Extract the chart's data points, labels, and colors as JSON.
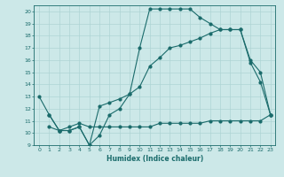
{
  "xlabel": "Humidex (Indice chaleur)",
  "xlim": [
    -0.5,
    23.5
  ],
  "ylim": [
    9,
    20.5
  ],
  "yticks": [
    9,
    10,
    11,
    12,
    13,
    14,
    15,
    16,
    17,
    18,
    19,
    20
  ],
  "xticks": [
    0,
    1,
    2,
    3,
    4,
    5,
    6,
    7,
    8,
    9,
    10,
    11,
    12,
    13,
    14,
    15,
    16,
    17,
    18,
    19,
    20,
    21,
    22,
    23
  ],
  "bg_color": "#cce8e8",
  "line_color": "#1a6b6b",
  "grid_color": "#aed4d4",
  "line1_x": [
    0,
    1,
    2,
    3,
    4,
    5,
    6,
    7,
    8,
    9,
    10,
    11,
    12,
    13,
    14,
    15,
    16,
    17,
    18,
    19,
    20,
    21,
    22,
    23
  ],
  "line1_y": [
    13,
    11.5,
    10.2,
    10.2,
    10.5,
    9.0,
    9.8,
    11.5,
    12.0,
    13.2,
    17.0,
    20.2,
    20.2,
    20.2,
    20.2,
    20.2,
    19.5,
    19.0,
    18.5,
    18.5,
    18.5,
    15.8,
    14.2,
    11.5
  ],
  "line2_x": [
    1,
    2,
    3,
    4,
    5,
    6,
    7,
    8,
    9,
    10,
    11,
    12,
    13,
    14,
    15,
    16,
    17,
    18,
    19,
    20,
    21,
    22,
    23
  ],
  "line2_y": [
    10.5,
    10.2,
    10.5,
    10.8,
    10.5,
    10.5,
    10.5,
    10.5,
    10.5,
    10.5,
    10.5,
    10.8,
    10.8,
    10.8,
    10.8,
    10.8,
    11.0,
    11.0,
    11.0,
    11.0,
    11.0,
    11.0,
    11.5
  ],
  "line3_x": [
    1,
    2,
    3,
    4,
    5,
    6,
    7,
    8,
    9,
    10,
    11,
    12,
    13,
    14,
    15,
    16,
    17,
    18,
    19,
    20,
    21,
    22,
    23
  ],
  "line3_y": [
    11.5,
    10.2,
    10.2,
    10.5,
    9.0,
    12.2,
    12.5,
    12.8,
    13.2,
    13.8,
    15.5,
    16.2,
    17.0,
    17.2,
    17.5,
    17.8,
    18.2,
    18.5,
    18.5,
    18.5,
    16.0,
    15.0,
    11.5
  ]
}
